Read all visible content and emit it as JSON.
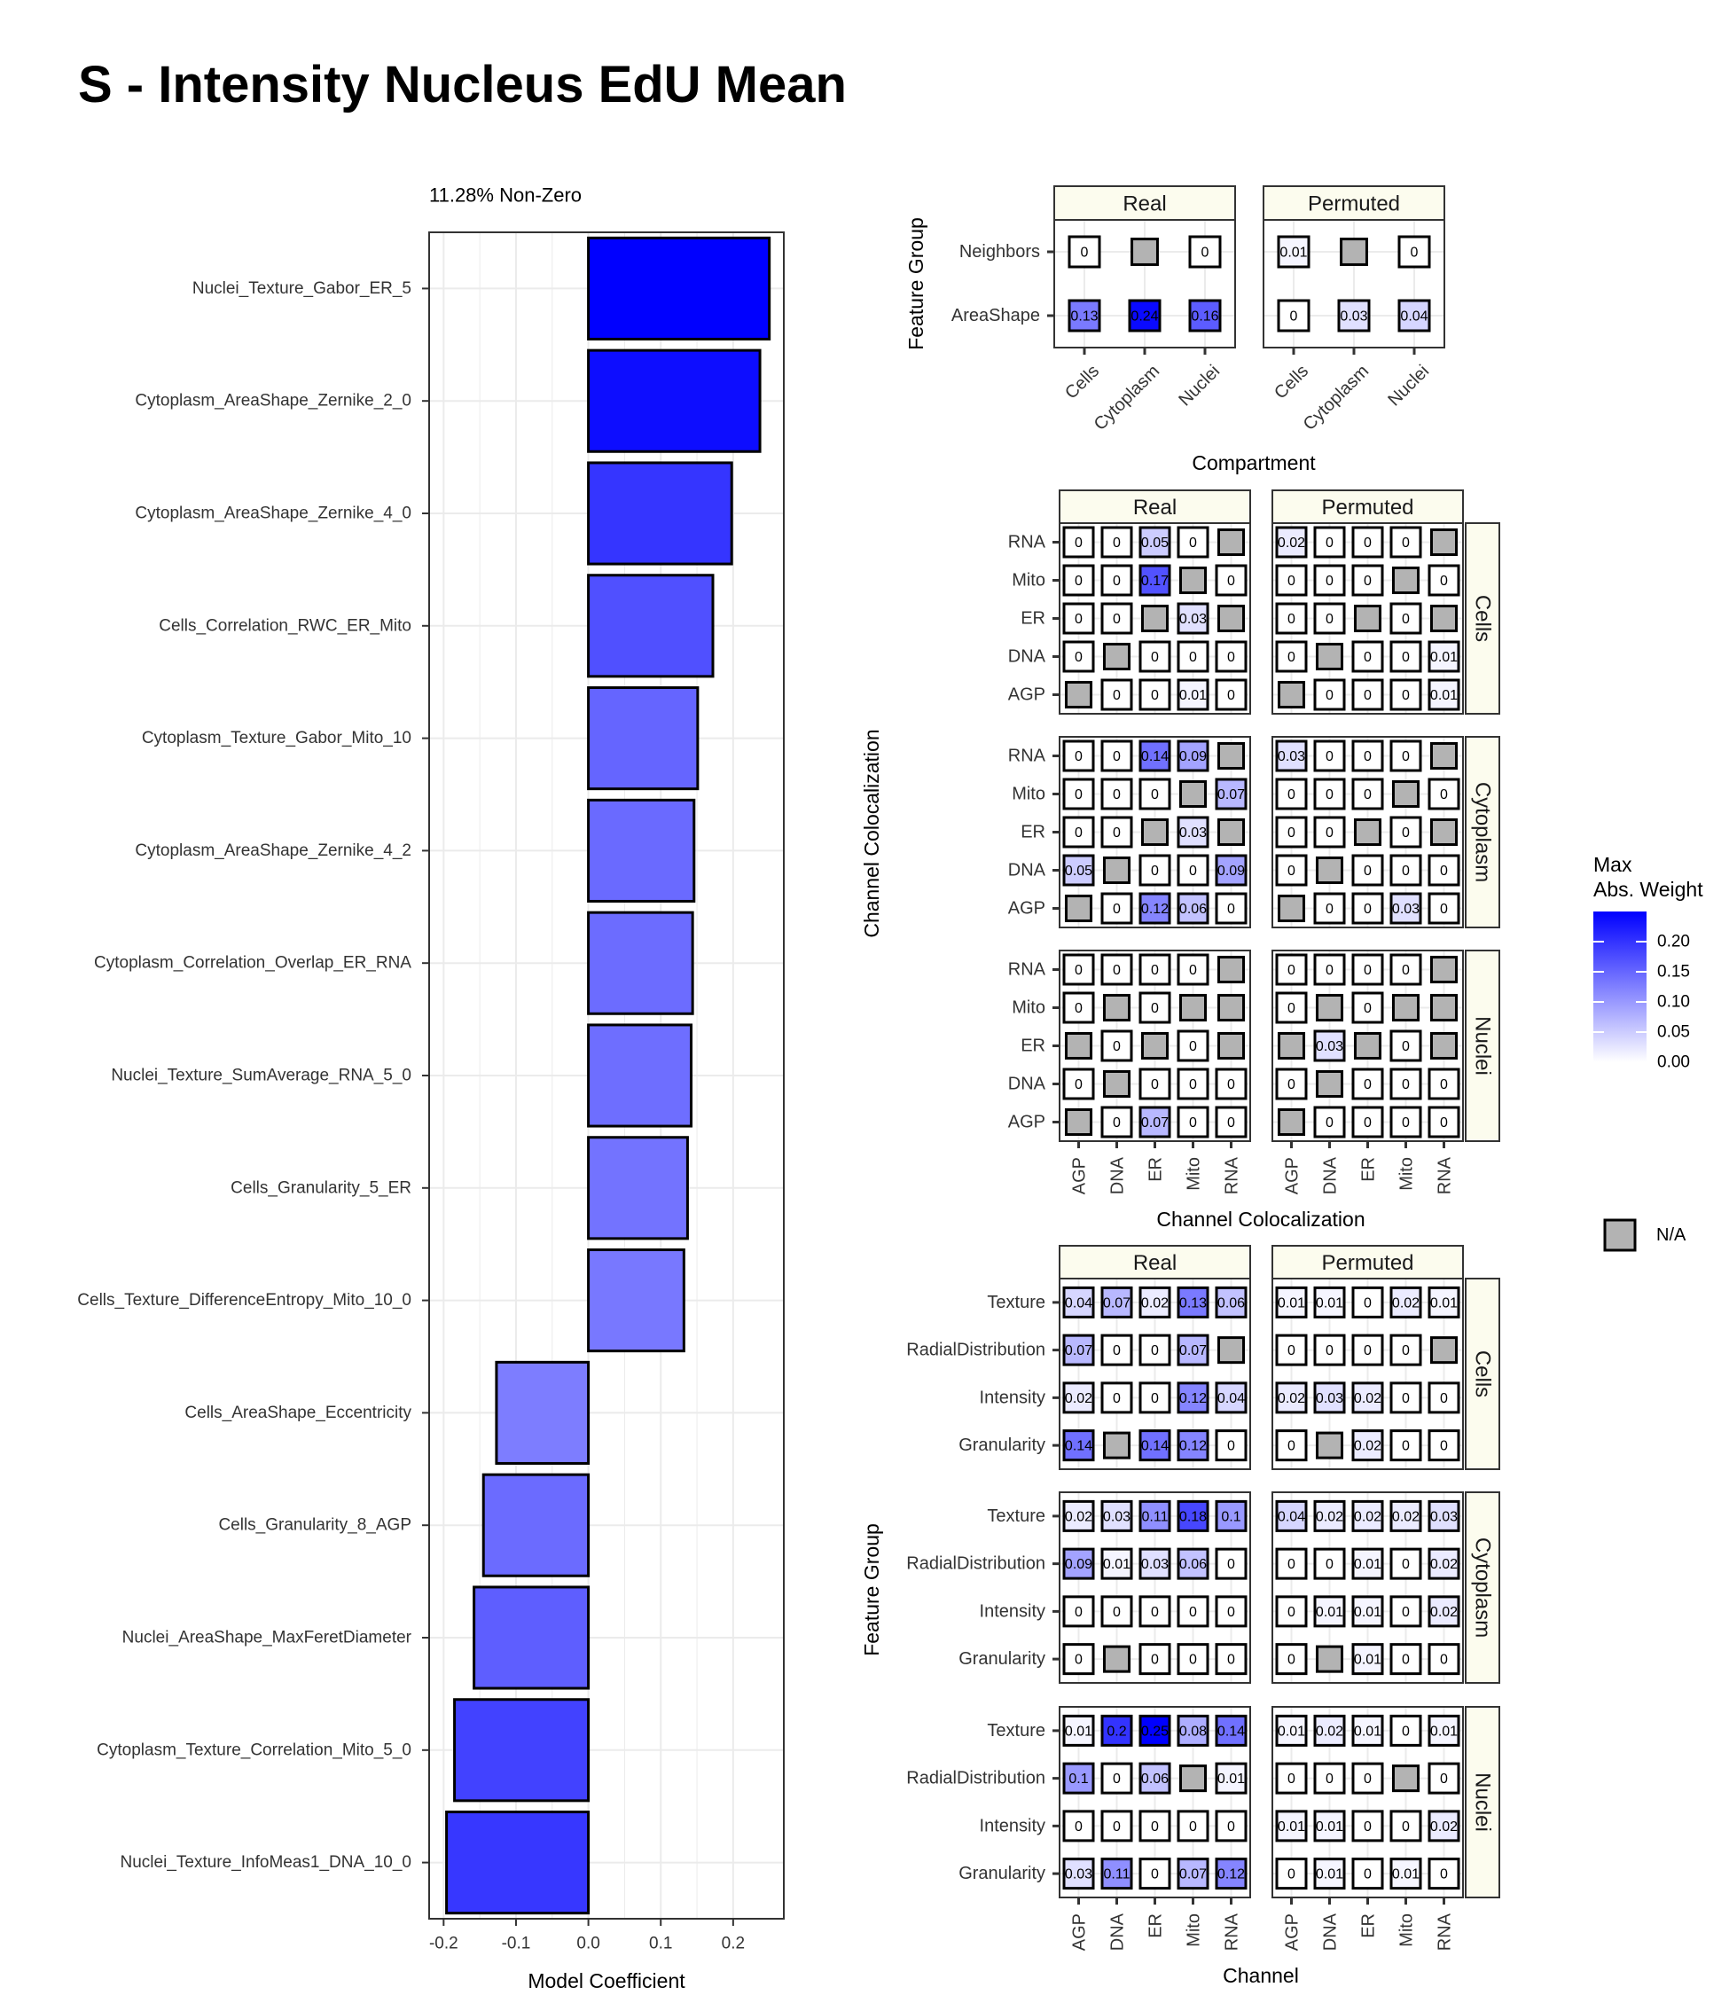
{
  "page": {
    "title": "S - Intensity Nucleus EdU Mean"
  },
  "colors": {
    "low": "#ffffff",
    "high": "#0000ff",
    "na": "#b3b3b3",
    "strip": "#fcfcee",
    "grid": "#ebebeb"
  },
  "chart_data": [
    {
      "type": "bar",
      "orientation": "horizontal",
      "subtitle": "11.28% Non-Zero",
      "xlabel": "Model Coefficient",
      "ylabel": "",
      "xlim": [
        -0.22,
        0.27
      ],
      "xticks": [
        -0.2,
        -0.1,
        0.0,
        0.1,
        0.2
      ],
      "xtick_labels": [
        "-0.2",
        "-0.1",
        "0.0",
        "0.1",
        "0.2"
      ],
      "grid": true,
      "categories": [
        "Nuclei_Texture_Gabor_ER_5",
        "Cytoplasm_AreaShape_Zernike_2_0",
        "Cytoplasm_AreaShape_Zernike_4_0",
        "Cells_Correlation_RWC_ER_Mito",
        "Cytoplasm_Texture_Gabor_Mito_10",
        "Cytoplasm_AreaShape_Zernike_4_2",
        "Cytoplasm_Correlation_Overlap_ER_RNA",
        "Nuclei_Texture_SumAverage_RNA_5_0",
        "Cells_Granularity_5_ER",
        "Cells_Texture_DifferenceEntropy_Mito_10_0",
        "Cells_AreaShape_Eccentricity",
        "Cells_Granularity_8_AGP",
        "Nuclei_AreaShape_MaxFeretDiameter",
        "Cytoplasm_Texture_Correlation_Mito_5_0",
        "Nuclei_Texture_InfoMeas1_DNA_10_0"
      ],
      "values": [
        0.25,
        0.237,
        0.198,
        0.172,
        0.151,
        0.146,
        0.144,
        0.142,
        0.137,
        0.132,
        -0.127,
        -0.145,
        -0.158,
        -0.185,
        -0.196
      ]
    },
    {
      "type": "heatmap",
      "xlabel": "Compartment",
      "ylabel": "Feature Group",
      "facets": [
        "Real",
        "Permuted"
      ],
      "x": [
        "Cells",
        "Cytoplasm",
        "Nuclei"
      ],
      "y": [
        "Neighbors",
        "AreaShape"
      ],
      "values": {
        "Real": [
          [
            0,
            null,
            0
          ],
          [
            0.13,
            0.24,
            0.16
          ]
        ],
        "Permuted": [
          [
            0.01,
            null,
            0
          ],
          [
            0,
            0.03,
            0.04
          ]
        ]
      }
    },
    {
      "type": "heatmap",
      "xlabel": "Channel Colocalization",
      "ylabel": "Channel Colocalization",
      "facets": [
        "Real",
        "Permuted"
      ],
      "row_facets": [
        "Cells",
        "Cytoplasm",
        "Nuclei"
      ],
      "x": [
        "AGP",
        "DNA",
        "ER",
        "Mito",
        "RNA"
      ],
      "y": [
        "RNA",
        "Mito",
        "ER",
        "DNA",
        "AGP"
      ],
      "values": {
        "Cells": {
          "Real": [
            [
              0,
              0,
              0.05,
              0,
              null
            ],
            [
              0,
              0,
              0.17,
              null,
              0
            ],
            [
              0,
              0,
              null,
              0.03,
              null
            ],
            [
              0,
              null,
              0,
              0,
              0
            ],
            [
              null,
              0,
              0,
              0.01,
              0
            ]
          ],
          "Permuted": [
            [
              0.02,
              0,
              0,
              0,
              null
            ],
            [
              0,
              0,
              0,
              null,
              0
            ],
            [
              0,
              0,
              null,
              0,
              null
            ],
            [
              0,
              null,
              0,
              0,
              0.01
            ],
            [
              null,
              0,
              0,
              0,
              0.01
            ]
          ]
        },
        "Cytoplasm": {
          "Real": [
            [
              0,
              0,
              0.14,
              0.09,
              null
            ],
            [
              0,
              0,
              0,
              null,
              0.07
            ],
            [
              0,
              0,
              null,
              0.03,
              null
            ],
            [
              0.05,
              null,
              0,
              0,
              0.09
            ],
            [
              null,
              0,
              0.12,
              0.06,
              0
            ]
          ],
          "Permuted": [
            [
              0.03,
              0,
              0,
              0,
              null
            ],
            [
              0,
              0,
              0,
              null,
              0
            ],
            [
              0,
              0,
              null,
              0,
              null
            ],
            [
              0,
              null,
              0,
              0,
              0
            ],
            [
              null,
              0,
              0,
              0.03,
              0
            ]
          ]
        },
        "Nuclei": {
          "Real": [
            [
              0,
              0,
              0,
              0,
              null
            ],
            [
              0,
              null,
              0,
              null,
              null
            ],
            [
              null,
              0,
              null,
              0,
              null
            ],
            [
              0,
              null,
              0,
              0,
              0
            ],
            [
              null,
              0,
              0.07,
              0,
              0
            ]
          ],
          "Permuted": [
            [
              0,
              0,
              0,
              0,
              null
            ],
            [
              0,
              null,
              0,
              null,
              null
            ],
            [
              null,
              0.03,
              null,
              0,
              null
            ],
            [
              0,
              null,
              0,
              0,
              0
            ],
            [
              null,
              0,
              0,
              0,
              0
            ]
          ]
        }
      }
    },
    {
      "type": "heatmap",
      "xlabel": "Channel",
      "ylabel": "Feature Group",
      "facets": [
        "Real",
        "Permuted"
      ],
      "row_facets": [
        "Cells",
        "Cytoplasm",
        "Nuclei"
      ],
      "x": [
        "AGP",
        "DNA",
        "ER",
        "Mito",
        "RNA"
      ],
      "y": [
        "Texture",
        "RadialDistribution",
        "Intensity",
        "Granularity"
      ],
      "values": {
        "Cells": {
          "Real": [
            [
              0.04,
              0.07,
              0.02,
              0.13,
              0.06
            ],
            [
              0.07,
              0,
              0,
              0.07,
              null
            ],
            [
              0.02,
              0,
              0,
              0.12,
              0.04
            ],
            [
              0.14,
              null,
              0.14,
              0.12,
              0
            ]
          ],
          "Permuted": [
            [
              0.01,
              0.01,
              0,
              0.02,
              0.01
            ],
            [
              0,
              0,
              0,
              0,
              null
            ],
            [
              0.02,
              0.03,
              0.02,
              0,
              0
            ],
            [
              0,
              null,
              0.02,
              0,
              0
            ]
          ]
        },
        "Cytoplasm": {
          "Real": [
            [
              0.02,
              0.03,
              0.11,
              0.18,
              0.1
            ],
            [
              0.09,
              0.01,
              0.03,
              0.06,
              0
            ],
            [
              0,
              0,
              0,
              0,
              0
            ],
            [
              0,
              null,
              0,
              0,
              0
            ]
          ],
          "Permuted": [
            [
              0.04,
              0.02,
              0.02,
              0.02,
              0.03
            ],
            [
              0,
              0,
              0.01,
              0,
              0.02
            ],
            [
              0,
              0.01,
              0.01,
              0,
              0.02
            ],
            [
              0,
              null,
              0.01,
              0,
              0
            ]
          ]
        },
        "Nuclei": {
          "Real": [
            [
              0.01,
              0.2,
              0.25,
              0.08,
              0.14
            ],
            [
              0.1,
              0,
              0.06,
              null,
              0.01
            ],
            [
              0,
              0,
              0,
              0,
              0
            ],
            [
              0.03,
              0.11,
              0,
              0.07,
              0.12
            ]
          ],
          "Permuted": [
            [
              0.01,
              0.02,
              0.01,
              0,
              0.01
            ],
            [
              0,
              0,
              0,
              null,
              0
            ],
            [
              0.01,
              0.01,
              0,
              0,
              0.02
            ],
            [
              0,
              0.01,
              0,
              0.01,
              0
            ]
          ]
        }
      }
    }
  ],
  "legend": {
    "title_line1": "Max",
    "title_line2": "Abs. Weight",
    "ticks": [
      0.0,
      0.05,
      0.1,
      0.15,
      0.2
    ],
    "tick_labels": [
      "0.00",
      "0.05",
      "0.10",
      "0.15",
      "0.20"
    ],
    "max": 0.25,
    "na_label": "N/A",
    "placement": "right"
  }
}
